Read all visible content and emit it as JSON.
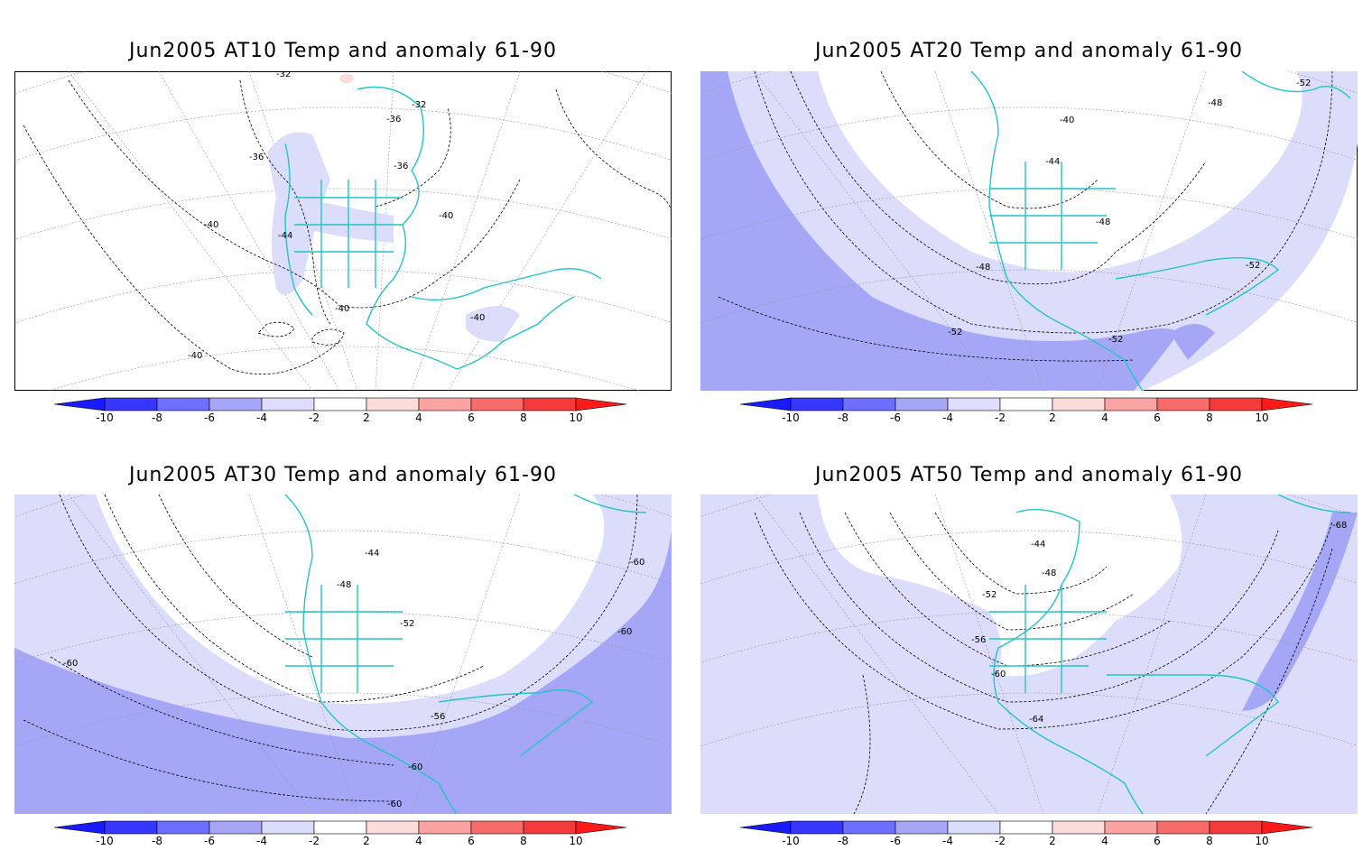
{
  "panels": [
    {
      "title": "Jun2005 AT10 Temp and anomaly 61-90",
      "contour_labels": [
        "-32",
        "-32",
        "-36",
        "-36",
        "-36",
        "-40",
        "-40",
        "-40",
        "-40",
        "-44",
        "-40"
      ],
      "colorbar": {
        "ticks": [
          "-10",
          "-8",
          "-6",
          "-4",
          "-2",
          "2",
          "4",
          "6",
          "8",
          "10"
        ]
      }
    },
    {
      "title": "Jun2005 AT20 Temp and anomaly 61-90",
      "contour_labels": [
        "-40",
        "-44",
        "-48",
        "-48",
        "-48",
        "-52",
        "-52",
        "-52",
        "-52"
      ],
      "colorbar": {
        "ticks": [
          "-10",
          "-8",
          "-6",
          "-4",
          "-2",
          "2",
          "4",
          "6",
          "8",
          "10"
        ]
      }
    },
    {
      "title": "Jun2005 AT30 Temp and anomaly 61-90",
      "contour_labels": [
        "-44",
        "-48",
        "-52",
        "-56",
        "-60",
        "-60",
        "-60",
        "-60",
        "-60"
      ],
      "colorbar": {
        "ticks": [
          "-10",
          "-8",
          "-6",
          "-4",
          "-2",
          "2",
          "4",
          "6",
          "8",
          "10"
        ]
      }
    },
    {
      "title": "Jun2005 AT50 Temp and anomaly 61-90",
      "contour_labels": [
        "-44",
        "-48",
        "-52",
        "-56",
        "-60",
        "-64",
        "-68"
      ],
      "colorbar": {
        "ticks": [
          "-10",
          "-8",
          "-6",
          "-4",
          "-2",
          "2",
          "4",
          "6",
          "8",
          "10"
        ]
      }
    }
  ],
  "colors": {
    "neg10": "#1a1aff",
    "neg8": "#3636ff",
    "neg6": "#6e6eff",
    "neg4": "#a6a6f7",
    "neg2": "#dcdcfb",
    "pos2": "#fddcdc",
    "pos4": "#fba3a3",
    "pos6": "#f76b6b",
    "pos8": "#f43a3a",
    "pos10": "#ff1a1a",
    "coast": "#22c5c5",
    "contour": "#000000",
    "grid": "#999999"
  }
}
